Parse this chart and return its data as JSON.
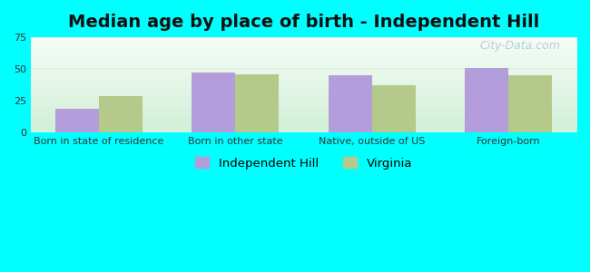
{
  "title": "Median age by place of birth - Independent Hill",
  "categories": [
    "Born in state of residence",
    "Born in other state",
    "Native, outside of US",
    "Foreign-born"
  ],
  "independent_hill": [
    19,
    47,
    45,
    51
  ],
  "virginia": [
    29,
    46,
    37,
    45
  ],
  "bar_color_hill": "#b39ddb",
  "bar_color_virginia": "#b5c98a",
  "figure_bg_color": "#00ffff",
  "plot_bg_top": "#f0fbf8",
  "plot_bg_bottom": "#d6f0d8",
  "grid_color": "#e0efe0",
  "ylim": [
    0,
    75
  ],
  "yticks": [
    0,
    25,
    50,
    75
  ],
  "legend_labels": [
    "Independent Hill",
    "Virginia"
  ],
  "title_fontsize": 14,
  "tick_fontsize": 8,
  "legend_fontsize": 9.5,
  "bar_width": 0.32,
  "watermark_text": "City-Data.com",
  "watermark_color": "#aec6cf",
  "watermark_fontsize": 9
}
